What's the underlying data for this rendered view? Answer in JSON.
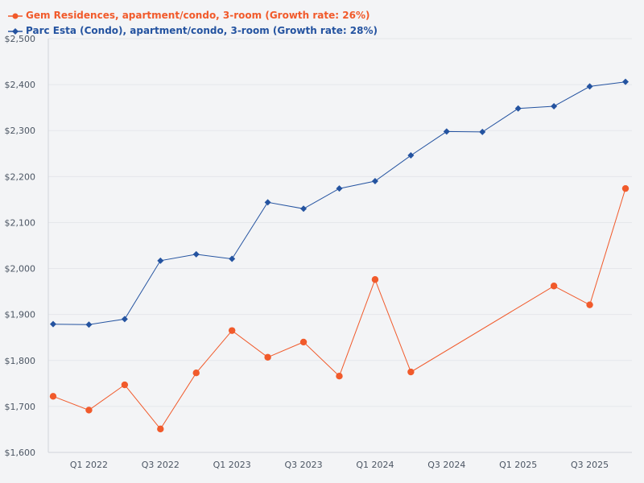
{
  "chart_data": {
    "type": "line",
    "title": "",
    "xlabel": "",
    "ylabel": "",
    "x_tick_labels": [
      "Q1 2022",
      "Q3 2022",
      "Q1 2023",
      "Q3 2023",
      "Q1 2024",
      "Q3 2024",
      "Q1 2025",
      "Q3 2025"
    ],
    "y_tick_labels": [
      "$1,600",
      "$1,700",
      "$1,800",
      "$1,900",
      "$2,000",
      "$2,100",
      "$2,200",
      "$2,300",
      "$2,400",
      "$2,500"
    ],
    "ylim": [
      1600,
      2500
    ],
    "x_count": 17,
    "x_tick_indices": [
      1,
      3,
      5,
      7,
      9,
      11,
      13,
      15
    ],
    "series": [
      {
        "name": "Gem Residences, apartment/condo, 3-room (Growth rate: 26%)",
        "color": "#f15a2b",
        "marker": "circle",
        "points": [
          {
            "i": 0,
            "v": 1722
          },
          {
            "i": 1,
            "v": 1692
          },
          {
            "i": 2,
            "v": 1747
          },
          {
            "i": 3,
            "v": 1651
          },
          {
            "i": 4,
            "v": 1773
          },
          {
            "i": 5,
            "v": 1865
          },
          {
            "i": 6,
            "v": 1807
          },
          {
            "i": 7,
            "v": 1840
          },
          {
            "i": 8,
            "v": 1766
          },
          {
            "i": 9,
            "v": 1976
          },
          {
            "i": 10,
            "v": 1775
          },
          {
            "i": 14,
            "v": 1962
          },
          {
            "i": 15,
            "v": 1921
          },
          {
            "i": 16,
            "v": 2174
          }
        ]
      },
      {
        "name": "Parc Esta (Condo), apartment/condo, 3-room (Growth rate: 28%)",
        "color": "#2453a0",
        "marker": "diamond",
        "points": [
          {
            "i": 0,
            "v": 1879
          },
          {
            "i": 1,
            "v": 1878
          },
          {
            "i": 2,
            "v": 1890
          },
          {
            "i": 3,
            "v": 2017
          },
          {
            "i": 4,
            "v": 2031
          },
          {
            "i": 5,
            "v": 2021
          },
          {
            "i": 6,
            "v": 2144
          },
          {
            "i": 7,
            "v": 2130
          },
          {
            "i": 8,
            "v": 2174
          },
          {
            "i": 9,
            "v": 2190
          },
          {
            "i": 10,
            "v": 2246
          },
          {
            "i": 11,
            "v": 2298
          },
          {
            "i": 12,
            "v": 2297
          },
          {
            "i": 13,
            "v": 2348
          },
          {
            "i": 14,
            "v": 2353
          },
          {
            "i": 15,
            "v": 2396
          },
          {
            "i": 16,
            "v": 2406
          }
        ]
      }
    ]
  }
}
